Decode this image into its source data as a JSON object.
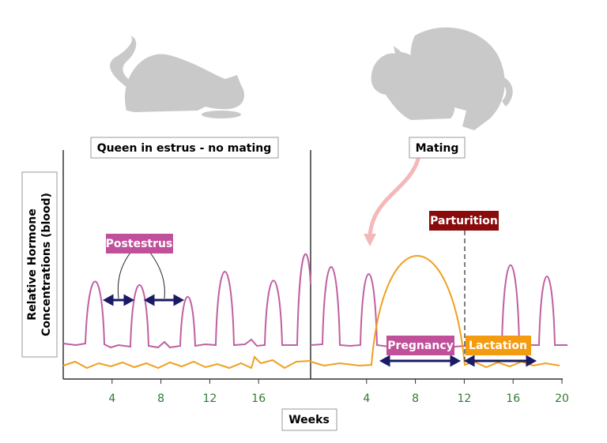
{
  "panels": [
    {
      "label": "Queen in estrus - no mating",
      "xticks": [
        4,
        8,
        12,
        16
      ]
    },
    {
      "label": "Mating",
      "xticks": [
        4,
        8,
        12,
        16,
        20
      ]
    }
  ],
  "y_axis_label": [
    "Relative Hormone",
    "Concentrations (blood)"
  ],
  "x_axis_label": "Weeks",
  "annotations": {
    "postestrus": "Postestrus",
    "parturition": "Parturition",
    "pregnancy": "Pregnancy",
    "lactation": "Lactation"
  }
}
